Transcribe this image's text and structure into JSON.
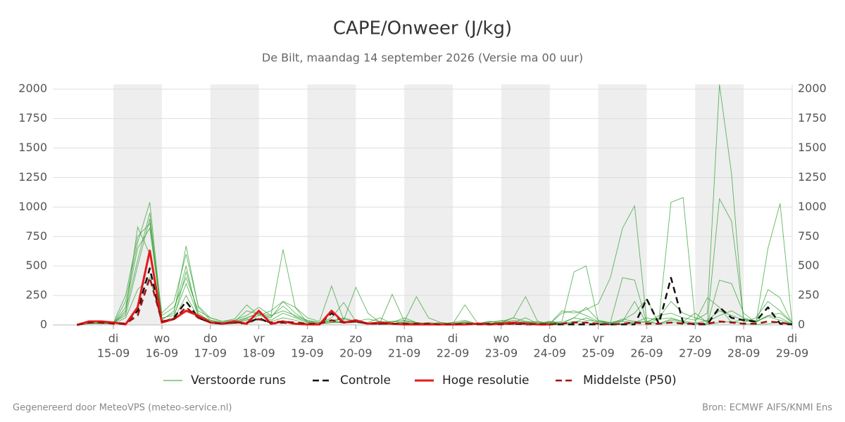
{
  "chart_data": {
    "type": "line",
    "title": "CAPE/Onweer (J/kg)",
    "subtitle": "De Bilt, maandag 14 september 2026 (Versie ma 00 uur)",
    "footer_left": "Gegenereerd door MeteoVPS (meteo-service.nl)",
    "footer_right": "Bron: ECMWF AIFS/KNMI Ens",
    "xlim": [
      -0.25,
      15
    ],
    "ylim": [
      0,
      2040
    ],
    "yticks": [
      0,
      250,
      500,
      750,
      1000,
      1250,
      1500,
      1750,
      2000
    ],
    "y2ticks": [
      0,
      250,
      500,
      750,
      1000,
      1250,
      1500,
      1750,
      2000
    ],
    "xticks": [
      {
        "value": 1,
        "label": "di"
      },
      {
        "value": 2,
        "label": "wo"
      },
      {
        "value": 3,
        "label": "do"
      },
      {
        "value": 4,
        "label": "vr"
      },
      {
        "value": 5,
        "label": "za"
      },
      {
        "value": 6,
        "label": "zo"
      },
      {
        "value": 7,
        "label": "ma"
      },
      {
        "value": 8,
        "label": "di"
      },
      {
        "value": 9,
        "label": "wo"
      },
      {
        "value": 10,
        "label": "do"
      },
      {
        "value": 11,
        "label": "vr"
      },
      {
        "value": 12,
        "label": "za"
      },
      {
        "value": 13,
        "label": "zo"
      },
      {
        "value": 14,
        "label": "ma"
      },
      {
        "value": 15,
        "label": "di"
      }
    ],
    "xtick_dates": [
      "15-09",
      "16-09",
      "17-09",
      "18-09",
      "19-09",
      "20-09",
      "21-09",
      "22-09",
      "23-09",
      "24-09",
      "25-09",
      "26-09",
      "27-09",
      "28-09",
      "29-09"
    ],
    "grid": true,
    "x": [
      0.25,
      0.5,
      0.75,
      1,
      1.25,
      1.5,
      1.75,
      2,
      2.25,
      2.5,
      2.75,
      3,
      3.25,
      3.5,
      3.75,
      4,
      4.25,
      4.5,
      4.75,
      5,
      5.25,
      5.5,
      5.75,
      6,
      6.25,
      6.5,
      6.75,
      7,
      7.25,
      7.5,
      7.75,
      8,
      8.25,
      8.5,
      8.75,
      9,
      9.25,
      9.5,
      9.75,
      10,
      10.25,
      10.5,
      10.75,
      11,
      11.25,
      11.5,
      11.75,
      12,
      12.25,
      12.5,
      12.75,
      13,
      13.25,
      13.5,
      13.75,
      14,
      14.25,
      14.5,
      14.75,
      15
    ],
    "ensemble": {
      "name": "Verstoorde runs",
      "color": "#2e9e2e",
      "members": [
        [
          0,
          30,
          20,
          10,
          200,
          700,
          1040,
          50,
          100,
          670,
          150,
          40,
          20,
          30,
          60,
          100,
          80,
          640,
          150,
          20,
          10,
          20,
          60,
          30,
          10,
          20,
          10,
          5,
          10,
          5,
          0,
          10,
          20,
          10,
          30,
          20,
          10,
          5,
          10,
          20,
          10,
          30,
          20,
          10,
          5,
          10,
          20,
          30,
          10,
          20,
          15,
          10,
          5,
          20,
          30,
          10,
          5,
          10,
          20,
          5
        ],
        [
          0,
          20,
          30,
          10,
          100,
          830,
          600,
          80,
          150,
          400,
          120,
          60,
          30,
          50,
          170,
          80,
          120,
          200,
          150,
          60,
          30,
          330,
          40,
          320,
          100,
          20,
          260,
          30,
          240,
          60,
          20,
          10,
          170,
          20,
          10,
          30,
          60,
          240,
          30,
          10,
          30,
          450,
          500,
          30,
          20,
          40,
          100,
          220,
          10,
          50,
          30,
          20,
          10,
          380,
          350,
          100,
          20,
          300,
          230,
          10
        ],
        [
          0,
          10,
          10,
          20,
          80,
          500,
          900,
          30,
          60,
          450,
          100,
          30,
          10,
          20,
          40,
          80,
          60,
          200,
          100,
          30,
          10,
          20,
          20,
          40,
          10,
          10,
          30,
          20,
          10,
          20,
          10,
          0,
          20,
          10,
          10,
          20,
          10,
          30,
          20,
          10,
          120,
          100,
          130,
          180,
          400,
          820,
          1010,
          30,
          60,
          200,
          100,
          60,
          30,
          80,
          120,
          60,
          30,
          70,
          40,
          10
        ],
        [
          0,
          20,
          10,
          10,
          150,
          650,
          820,
          60,
          80,
          350,
          80,
          40,
          20,
          30,
          60,
          100,
          40,
          100,
          60,
          20,
          10,
          60,
          190,
          30,
          20,
          60,
          10,
          30,
          20,
          10,
          10,
          20,
          40,
          10,
          10,
          20,
          60,
          30,
          10,
          20,
          10,
          60,
          150,
          40,
          20,
          30,
          20,
          60,
          40,
          1040,
          1080,
          30,
          230,
          150,
          20,
          50,
          30,
          80,
          100,
          20
        ],
        [
          0,
          30,
          30,
          20,
          250,
          750,
          860,
          100,
          200,
          600,
          160,
          60,
          30,
          40,
          80,
          150,
          80,
          120,
          80,
          40,
          20,
          40,
          50,
          30,
          50,
          30,
          20,
          60,
          20,
          10,
          20,
          10,
          30,
          10,
          20,
          40,
          20,
          60,
          10,
          30,
          20,
          60,
          40,
          30,
          20,
          400,
          380,
          20,
          80,
          100,
          60,
          40,
          100,
          2040,
          1280,
          20,
          60,
          200,
          120,
          20
        ],
        [
          0,
          10,
          20,
          10,
          120,
          550,
          950,
          40,
          120,
          500,
          60,
          30,
          20,
          30,
          120,
          90,
          70,
          160,
          70,
          30,
          20,
          30,
          20,
          30,
          10,
          20,
          10,
          20,
          10,
          10,
          10,
          20,
          10,
          10,
          30,
          20,
          10,
          20,
          30,
          10,
          100,
          120,
          80,
          30,
          10,
          30,
          200,
          10,
          50,
          60,
          30,
          100,
          20,
          1070,
          880,
          50,
          10,
          650,
          1030,
          10
        ],
        [
          0,
          20,
          10,
          10,
          60,
          300,
          400,
          30,
          50,
          250,
          60,
          20,
          10,
          20,
          50,
          40,
          30,
          60,
          40,
          10,
          10,
          20,
          30,
          20,
          10,
          20,
          30,
          40,
          20,
          10,
          10,
          10,
          20,
          10,
          10,
          20,
          40,
          20,
          10,
          30,
          10,
          20,
          60,
          20,
          10,
          50,
          30,
          20,
          10,
          40,
          20,
          10,
          40,
          120,
          80,
          40,
          20,
          80,
          60,
          10
        ]
      ]
    },
    "series": [
      {
        "name": "Controle",
        "color": "#111111",
        "dash": true,
        "values": [
          0,
          20,
          30,
          20,
          10,
          120,
          480,
          20,
          60,
          200,
          60,
          20,
          10,
          20,
          10,
          60,
          10,
          20,
          10,
          5,
          5,
          100,
          20,
          30,
          10,
          10,
          10,
          5,
          5,
          5,
          5,
          5,
          5,
          10,
          10,
          10,
          10,
          5,
          5,
          5,
          5,
          5,
          5,
          5,
          5,
          5,
          5,
          220,
          10,
          400,
          20,
          5,
          5,
          150,
          60,
          40,
          30,
          150,
          10,
          5
        ]
      },
      {
        "name": "Hoge resolutie",
        "color": "#e41a1c",
        "dash": false,
        "values": [
          0,
          30,
          30,
          20,
          5,
          150,
          630,
          20,
          50,
          120,
          80,
          20,
          10,
          30,
          10,
          120,
          10,
          30,
          10,
          5,
          5,
          120,
          20,
          40,
          10,
          20,
          10,
          5,
          5,
          5,
          5,
          5,
          5,
          10,
          5,
          10,
          20,
          10,
          5,
          5,
          null,
          null,
          null,
          null,
          null,
          null,
          null,
          null,
          null,
          null,
          null,
          null,
          null,
          null,
          null,
          null,
          null,
          null,
          null,
          null
        ]
      },
      {
        "name": "Middelste (P50)",
        "color": "#a01010",
        "dash": true,
        "values": [
          0,
          20,
          20,
          10,
          10,
          80,
          400,
          30,
          50,
          150,
          60,
          20,
          10,
          20,
          20,
          50,
          20,
          30,
          20,
          10,
          10,
          40,
          20,
          30,
          10,
          10,
          10,
          10,
          10,
          10,
          5,
          5,
          10,
          5,
          5,
          5,
          10,
          10,
          5,
          5,
          10,
          20,
          20,
          10,
          5,
          10,
          20,
          10,
          10,
          20,
          10,
          10,
          10,
          30,
          20,
          10,
          10,
          30,
          20,
          5
        ]
      }
    ]
  }
}
